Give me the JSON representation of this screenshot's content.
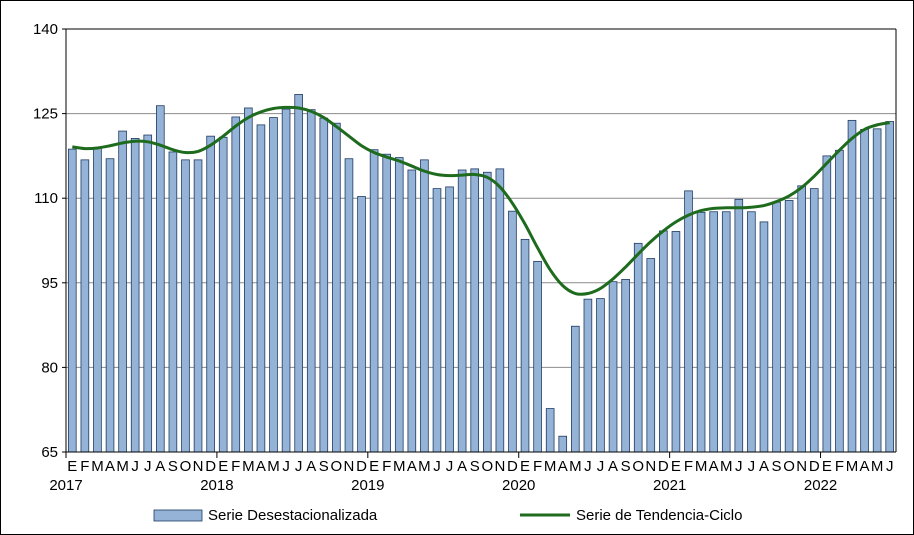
{
  "chart_data": {
    "type": "bar",
    "title": "",
    "xlabel": "",
    "ylabel": "",
    "ylim": [
      65,
      140
    ],
    "yticks": [
      65,
      80,
      95,
      110,
      125,
      140
    ],
    "grid": "horizontal",
    "legend_position": "bottom",
    "month_letters": [
      "E",
      "F",
      "M",
      "A",
      "M",
      "J",
      "J",
      "A",
      "S",
      "O",
      "N",
      "D"
    ],
    "years": [
      "2017",
      "2018",
      "2019",
      "2020",
      "2021",
      "2022"
    ],
    "series": [
      {
        "name": "Serie Desestacionalizada",
        "kind": "bar",
        "color": "#95b3d7",
        "values": [
          118.7,
          116.8,
          118.9,
          117.0,
          121.9,
          120.6,
          121.2,
          126.4,
          118.2,
          116.8,
          116.8,
          121.0,
          120.8,
          124.4,
          126.0,
          123.0,
          124.3,
          125.8,
          128.4,
          125.7,
          124.2,
          123.3,
          117.0,
          110.3,
          118.6,
          117.8,
          117.2,
          115.0,
          116.8,
          111.7,
          112.0,
          115.0,
          115.2,
          114.6,
          115.2,
          107.7,
          102.7,
          98.8,
          72.7,
          67.8,
          87.3,
          92.1,
          92.2,
          95.2,
          95.6,
          102.0,
          99.3,
          104.2,
          104.1,
          111.3,
          107.5,
          107.6,
          107.6,
          109.8,
          107.6,
          105.8,
          109.3,
          109.6,
          112.2,
          111.7,
          117.5,
          118.5,
          123.8,
          122.2,
          122.3,
          123.6
        ]
      },
      {
        "name": "Serie de Tendencia-Ciclo",
        "kind": "line",
        "color": "#1e6b1e",
        "values": [
          119.1,
          118.8,
          118.9,
          119.3,
          119.8,
          120.1,
          120.0,
          119.4,
          118.6,
          118.1,
          118.3,
          119.4,
          121.0,
          122.8,
          124.3,
          125.3,
          125.9,
          126.1,
          126.0,
          125.4,
          124.3,
          122.7,
          121.0,
          119.3,
          118.1,
          117.3,
          116.6,
          115.7,
          114.8,
          114.2,
          114.0,
          114.1,
          114.2,
          113.7,
          112.0,
          109.1,
          105.4,
          101.2,
          97.3,
          94.5,
          93.1,
          93.1,
          94.0,
          95.7,
          97.8,
          100.1,
          102.3,
          104.2,
          105.8,
          107.0,
          107.8,
          108.2,
          108.3,
          108.3,
          108.4,
          108.7,
          109.4,
          110.4,
          111.9,
          113.9,
          116.2,
          118.5,
          120.6,
          122.2,
          123.0,
          123.4
        ]
      }
    ]
  }
}
